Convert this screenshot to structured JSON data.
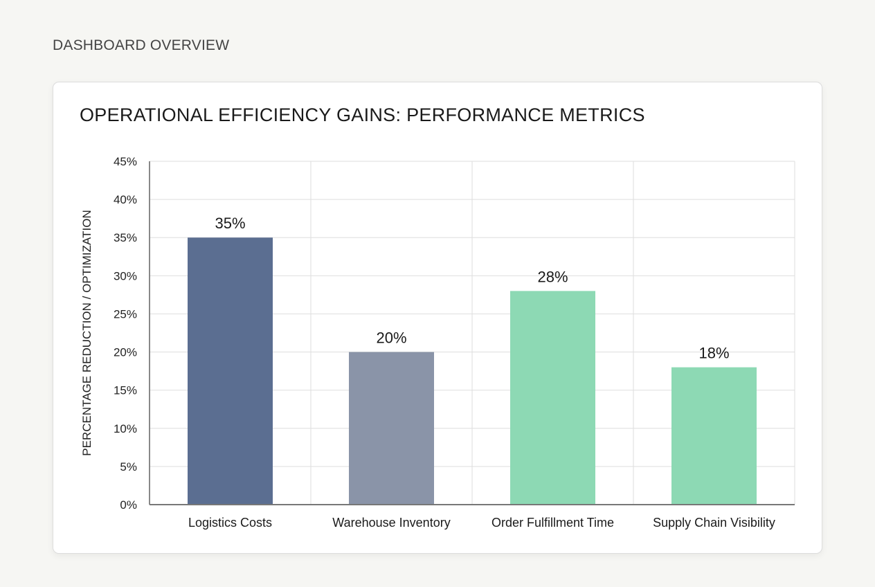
{
  "page": {
    "header": "DASHBOARD OVERVIEW"
  },
  "chart_data": {
    "type": "bar",
    "title": "OPERATIONAL EFFICIENCY GAINS: PERFORMANCE METRICS",
    "xlabel": "",
    "ylabel": "PERCENTAGE REDUCTION / OPTIMIZATION",
    "categories": [
      "Logistics Costs",
      "Warehouse Inventory",
      "Order Fulfillment Time",
      "Supply Chain Visibility"
    ],
    "values": [
      35,
      20,
      28,
      18
    ],
    "data_labels": [
      "35%",
      "20%",
      "28%",
      "18%"
    ],
    "colors": [
      "#5b6e91",
      "#8a94a8",
      "#8dd9b4",
      "#8dd9b4"
    ],
    "ylim": [
      0,
      45
    ],
    "yticks": [
      0,
      5,
      10,
      15,
      20,
      25,
      30,
      35,
      40,
      45
    ],
    "ytick_labels": [
      "0%",
      "5%",
      "10%",
      "15%",
      "20%",
      "25%",
      "30%",
      "35%",
      "40%",
      "45%"
    ],
    "grid": true,
    "legend": "none"
  }
}
